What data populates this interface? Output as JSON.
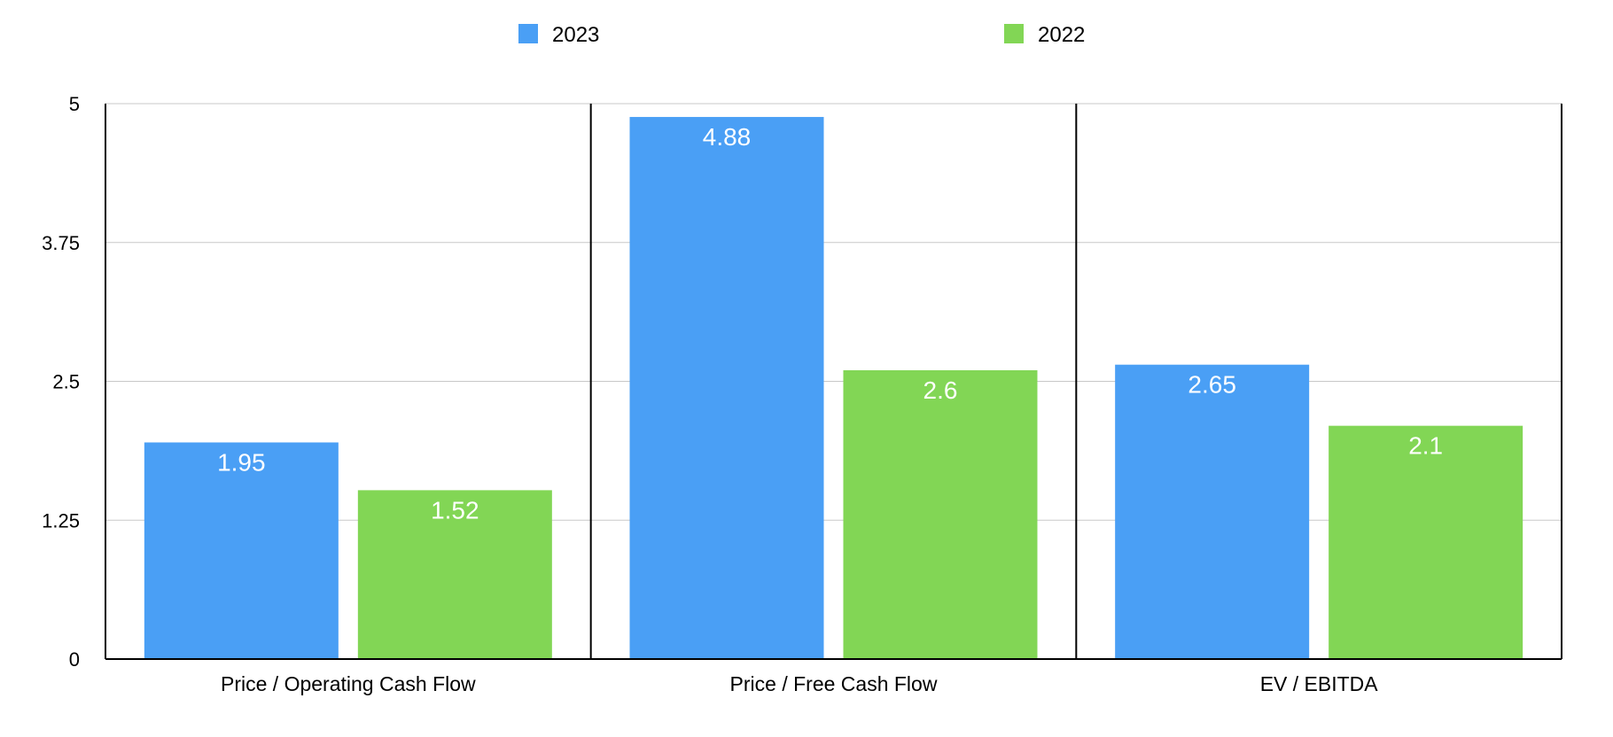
{
  "colors": {
    "series_2023": "#4a9ff5",
    "series_2022": "#82d655",
    "gridline": "#c8c8c8",
    "axis": "#000000"
  },
  "chart_data": {
    "type": "bar",
    "title": "",
    "xlabel": "",
    "ylabel": "",
    "categories": [
      "Price / Operating Cash Flow",
      "Price / Free Cash Flow",
      "EV / EBITDA"
    ],
    "series": [
      {
        "name": "2023",
        "values": [
          1.95,
          4.88,
          2.65
        ],
        "color": "#4a9ff5"
      },
      {
        "name": "2022",
        "values": [
          1.52,
          2.6,
          2.1
        ],
        "color": "#82d655"
      }
    ],
    "ylim": [
      0,
      5
    ],
    "yticks": [
      0,
      1.25,
      2.5,
      3.75,
      5
    ],
    "ytick_labels": [
      "0",
      "1.25",
      "2.5",
      "3.75",
      "5"
    ],
    "data_labels": [
      [
        "1.95",
        "4.88",
        "2.65"
      ],
      [
        "1.52",
        "2.6",
        "2.1"
      ]
    ],
    "grid": true,
    "legend_position": "top-center"
  }
}
